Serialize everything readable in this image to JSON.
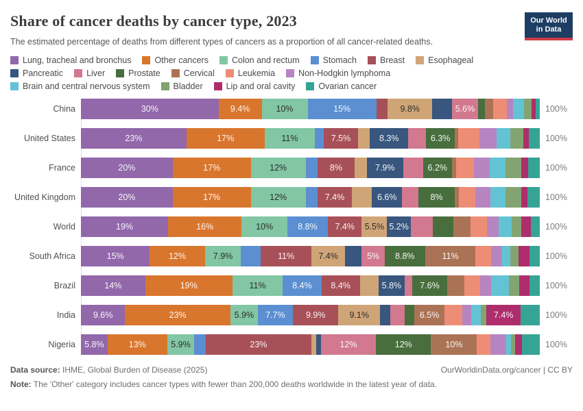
{
  "header": {
    "title": "Share of cancer deaths by cancer type, 2023",
    "subtitle": "The estimated percentage of deaths from different types of cancers as a proportion of all cancer-related deaths.",
    "logo": {
      "line1": "Our World",
      "line2": "in Data"
    }
  },
  "chart_data": {
    "type": "bar",
    "stacked": true,
    "horizontal": true,
    "unit": "%",
    "x_max": 100,
    "legend_position": "top",
    "legend_breaks": [
      6,
      12
    ],
    "series_names": [
      "Lung, tracheal and bronchus",
      "Other cancers",
      "Colon and rectum",
      "Stomach",
      "Breast",
      "Esophageal",
      "Pancreatic",
      "Liver",
      "Prostate",
      "Cervical",
      "Leukemia",
      "Non-Hodgkin lymphoma",
      "Brain and central nervous system",
      "Bladder",
      "Lip and oral cavity",
      "Ovarian cancer"
    ],
    "series_colors": [
      "#9268ab",
      "#d9762e",
      "#82c6a4",
      "#5b8fd2",
      "#a85058",
      "#cfa577",
      "#38567e",
      "#d2788f",
      "#486e3d",
      "#ab7355",
      "#ee8d76",
      "#b685c1",
      "#63c3d4",
      "#83a471",
      "#ae2d6c",
      "#36a495"
    ],
    "categories": [
      "China",
      "United States",
      "France",
      "United Kingdom",
      "World",
      "South Africa",
      "Brazil",
      "India",
      "Nigeria"
    ],
    "rows": [
      {
        "label": "China",
        "values": [
          30,
          9.4,
          10,
          15,
          2.4,
          9.8,
          4.3,
          5.6,
          1.6,
          1.8,
          2.9,
          1.3,
          2.4,
          1.7,
          0.9,
          0.9
        ],
        "display_labels": [
          "30%",
          "9.4%",
          "10%",
          "15%",
          "",
          "9.8%",
          "",
          "5.6%",
          "",
          "",
          "",
          "",
          "",
          "",
          "",
          ""
        ],
        "total_label": "100%"
      },
      {
        "label": "United States",
        "values": [
          23,
          17,
          11,
          1.9,
          7.5,
          2.6,
          8.3,
          3.9,
          6.3,
          0.7,
          4.6,
          3.8,
          2.9,
          2.9,
          1.2,
          2.4
        ],
        "display_labels": [
          "23%",
          "17%",
          "11%",
          "",
          "7.5%",
          "",
          "8.3%",
          "",
          "6.3%",
          "",
          "",
          "",
          "",
          "",
          "",
          ""
        ],
        "total_label": "100%"
      },
      {
        "label": "France",
        "values": [
          20,
          17,
          12,
          2.6,
          8,
          2.7,
          7.9,
          4.4,
          6.2,
          0.9,
          4.0,
          3.4,
          3.4,
          3.5,
          1.5,
          2.5
        ],
        "display_labels": [
          "20%",
          "17%",
          "12%",
          "",
          "8%",
          "",
          "7.9%",
          "",
          "6.2%",
          "",
          "",
          "",
          "",
          "",
          "",
          ""
        ],
        "total_label": "100%"
      },
      {
        "label": "United Kingdom",
        "values": [
          20,
          17,
          12,
          2.6,
          7.4,
          4.4,
          6.6,
          3.5,
          8,
          0.9,
          3.6,
          3.2,
          3.4,
          3.4,
          1.3,
          2.7
        ],
        "display_labels": [
          "20%",
          "17%",
          "12%",
          "",
          "7.4%",
          "",
          "6.6%",
          "",
          "8%",
          "",
          "",
          "",
          "",
          "",
          "",
          ""
        ],
        "total_label": "100%"
      },
      {
        "label": "World",
        "values": [
          19,
          16,
          10,
          8.8,
          7.4,
          5.5,
          5.2,
          4.8,
          4.5,
          3.7,
          3.6,
          2.6,
          2.7,
          2.1,
          2.1,
          2.0
        ],
        "display_labels": [
          "19%",
          "16%",
          "10%",
          "8.8%",
          "7.4%",
          "5.5%",
          "5.2%",
          "",
          "",
          "",
          "",
          "",
          "",
          "",
          "",
          ""
        ],
        "total_label": "100%"
      },
      {
        "label": "South Africa",
        "values": [
          15,
          12,
          7.9,
          4.3,
          11,
          7.4,
          3.6,
          5,
          8.8,
          11,
          3.4,
          2.4,
          1.8,
          1.8,
          2.3,
          2.3
        ],
        "display_labels": [
          "15%",
          "12%",
          "7.9%",
          "",
          "11%",
          "7.4%",
          "",
          "5%",
          "8.8%",
          "11%",
          "",
          "",
          "",
          "",
          "",
          ""
        ],
        "total_label": "100%"
      },
      {
        "label": "Brazil",
        "values": [
          14,
          19,
          11,
          8.4,
          8.4,
          4.0,
          5.8,
          1.6,
          7.6,
          3.7,
          3.5,
          2.4,
          3.9,
          2.2,
          2.3,
          2.2
        ],
        "display_labels": [
          "14%",
          "19%",
          "11%",
          "8.4%",
          "8.4%",
          "",
          "5.8%",
          "",
          "7.6%",
          "",
          "",
          "",
          "",
          "",
          "",
          ""
        ],
        "total_label": "100%"
      },
      {
        "label": "India",
        "values": [
          9.6,
          23,
          5.9,
          7.7,
          9.9,
          9.1,
          2.2,
          3.2,
          2.1,
          6.5,
          3.9,
          2.0,
          2.1,
          1.2,
          7.4,
          4.2
        ],
        "display_labels": [
          "9.6%",
          "23%",
          "5.9%",
          "7.7%",
          "9.9%",
          "9.1%",
          "",
          "",
          "",
          "6.5%",
          "",
          "",
          "",
          "",
          "7.4%",
          ""
        ],
        "total_label": "100%"
      },
      {
        "label": "Nigeria",
        "values": [
          5.8,
          13,
          5.9,
          2.5,
          23,
          1.0,
          1.1,
          12,
          12,
          10,
          3.0,
          3.4,
          1.0,
          0.9,
          1.5,
          3.9
        ],
        "display_labels": [
          "5.8%",
          "13%",
          "5.9%",
          "",
          "23%",
          "",
          "",
          "12%",
          "12%",
          "10%",
          "",
          "",
          "",
          "",
          "",
          ""
        ],
        "total_label": "100%"
      }
    ]
  },
  "footer": {
    "source_bold": "Data source:",
    "source_text": " IHME, Global Burden of Disease (2025)",
    "right_text": "OurWorldinData.org/cancer | CC BY",
    "note_bold": "Note:",
    "note_text": " The 'Other' category includes cancer types with fewer than 200,000 deaths worldwide in the latest year of data."
  }
}
